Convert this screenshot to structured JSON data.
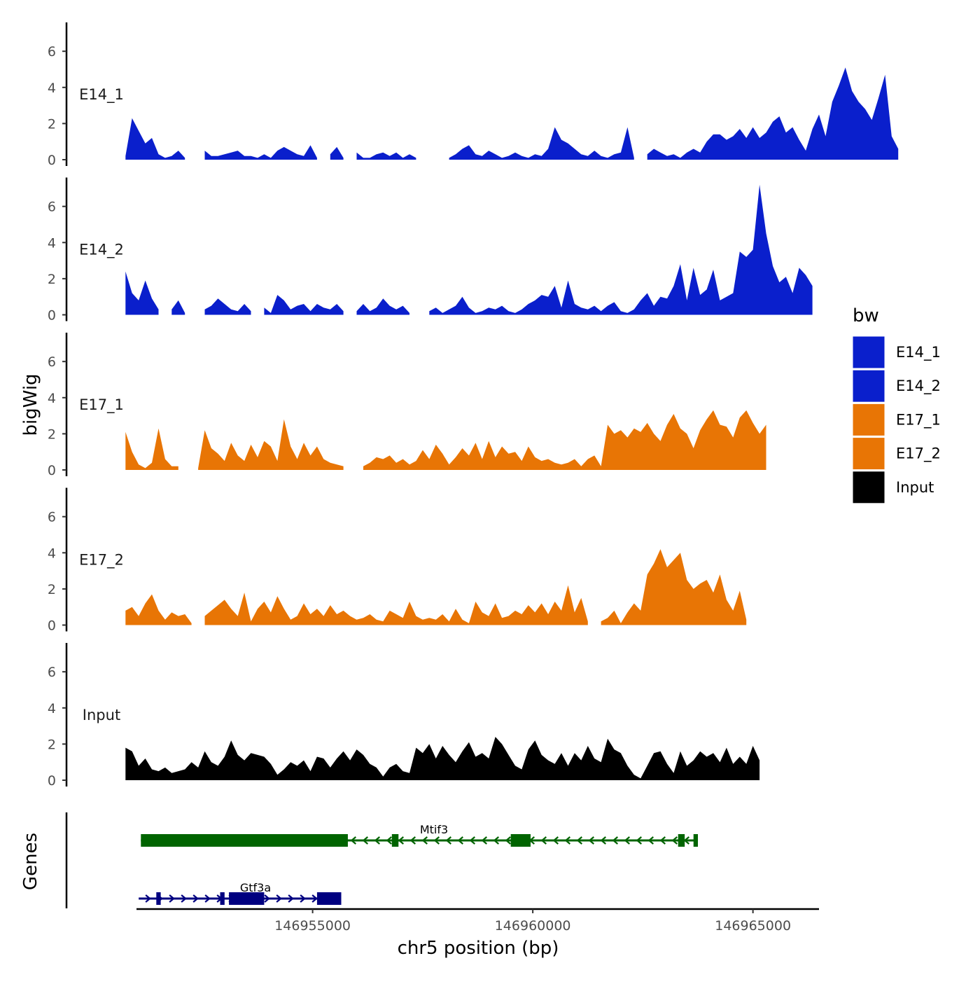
{
  "chart_data": {
    "type": "area",
    "title": "",
    "xlabel": "chr5 position (bp)",
    "ylabel": "bigWig",
    "genes_label": "Genes",
    "xlim": [
      146951000,
      146966500
    ],
    "ylim": [
      0,
      7.6
    ],
    "x_ticks": [
      146955000,
      146960000,
      146965000
    ],
    "x_tick_labels": [
      "146955000",
      "146960000",
      "146965000"
    ],
    "y_ticks": [
      0,
      2,
      4,
      6
    ],
    "y_tick_labels": [
      "0",
      "2",
      "4",
      "6"
    ],
    "legend": {
      "title": "bw",
      "position": "right",
      "entries": [
        {
          "label": "E14_1",
          "color": "#0a1fcc"
        },
        {
          "label": "E14_2",
          "color": "#0a1fcc"
        },
        {
          "label": "E17_1",
          "color": "#e87505"
        },
        {
          "label": "E17_2",
          "color": "#e87505"
        },
        {
          "label": "Input",
          "color": "#000000"
        }
      ]
    },
    "series": [
      {
        "name": "E14_1",
        "color": "#0a1fcc",
        "x_start": 146950750,
        "x_step": 150,
        "values": [
          0.2,
          2.3,
          1.6,
          0.9,
          1.2,
          0.3,
          0.1,
          0.2,
          0.5,
          0.1,
          null,
          null,
          0.5,
          0.2,
          0.2,
          0.3,
          0.4,
          0.5,
          0.2,
          0.2,
          0.1,
          0.3,
          0.1,
          0.5,
          0.7,
          0.5,
          0.3,
          0.2,
          0.8,
          0.1,
          null,
          0.3,
          0.7,
          0.1,
          null,
          0.4,
          0.1,
          0.1,
          0.3,
          0.4,
          0.2,
          0.4,
          0.1,
          0.3,
          0.1,
          null,
          null,
          null,
          null,
          0.1,
          0.3,
          0.6,
          0.8,
          0.3,
          0.2,
          0.5,
          0.3,
          0.1,
          0.2,
          0.4,
          0.2,
          0.1,
          0.3,
          0.2,
          0.6,
          1.8,
          1.1,
          0.9,
          0.6,
          0.3,
          0.2,
          0.5,
          0.2,
          0.1,
          0.3,
          0.4,
          1.8,
          0.1,
          null,
          0.3,
          0.6,
          0.4,
          0.2,
          0.3,
          0.1,
          0.4,
          0.6,
          0.4,
          1.0,
          1.4,
          1.4,
          1.1,
          1.3,
          1.7,
          1.2,
          1.8,
          1.2,
          1.5,
          2.1,
          2.4,
          1.5,
          1.8,
          1.1,
          0.5,
          1.7,
          2.5,
          1.3,
          3.2,
          4.1,
          5.1,
          3.8,
          3.2,
          2.8,
          2.2,
          3.4,
          4.7,
          1.3,
          0.6
        ],
        "gaps": []
      },
      {
        "name": "E14_2",
        "color": "#0a1fcc",
        "x_start": 146950750,
        "x_step": 150,
        "values": [
          2.4,
          1.2,
          0.8,
          1.9,
          0.9,
          0.3,
          null,
          0.3,
          0.8,
          0.1,
          null,
          null,
          0.3,
          0.5,
          0.9,
          0.6,
          0.3,
          0.2,
          0.6,
          0.2,
          null,
          0.4,
          0.1,
          1.1,
          0.8,
          0.3,
          0.5,
          0.6,
          0.2,
          0.6,
          0.4,
          0.3,
          0.6,
          0.2,
          null,
          0.2,
          0.6,
          0.2,
          0.4,
          0.9,
          0.5,
          0.3,
          0.5,
          0.1,
          null,
          null,
          0.2,
          0.4,
          0.1,
          0.3,
          0.5,
          1.0,
          0.4,
          0.1,
          0.2,
          0.4,
          0.3,
          0.5,
          0.2,
          0.1,
          0.3,
          0.6,
          0.8,
          1.1,
          1.0,
          1.6,
          0.4,
          1.9,
          0.6,
          0.4,
          0.3,
          0.5,
          0.2,
          0.5,
          0.7,
          0.2,
          0.1,
          0.3,
          0.8,
          1.2,
          0.5,
          1.0,
          0.9,
          1.6,
          2.8,
          0.8,
          2.6,
          1.1,
          1.4,
          2.5,
          0.8,
          1.0,
          1.2,
          3.5,
          3.2,
          3.6,
          7.2,
          4.5,
          2.7,
          1.8,
          2.1,
          1.2,
          2.6,
          2.2,
          1.6
        ],
        "gaps": []
      },
      {
        "name": "E17_1",
        "color": "#e87505",
        "x_start": 146950750,
        "x_step": 150,
        "values": [
          2.1,
          1.0,
          0.3,
          0.1,
          0.4,
          2.3,
          0.6,
          0.2,
          0.2,
          null,
          null,
          0.1,
          2.2,
          1.2,
          0.9,
          0.5,
          1.5,
          0.8,
          0.5,
          1.4,
          0.7,
          1.6,
          1.3,
          0.5,
          2.8,
          1.3,
          0.6,
          1.5,
          0.8,
          1.3,
          0.6,
          0.4,
          0.3,
          0.2,
          null,
          null,
          0.2,
          0.4,
          0.7,
          0.6,
          0.8,
          0.4,
          0.6,
          0.3,
          0.5,
          1.1,
          0.6,
          1.4,
          0.9,
          0.3,
          0.7,
          1.2,
          0.8,
          1.5,
          0.6,
          1.6,
          0.7,
          1.3,
          0.9,
          1.0,
          0.5,
          1.3,
          0.7,
          0.5,
          0.6,
          0.4,
          0.3,
          0.4,
          0.6,
          0.2,
          0.6,
          0.8,
          0.2,
          2.5,
          2.0,
          2.2,
          1.8,
          2.3,
          2.1,
          2.6,
          2.0,
          1.6,
          2.5,
          3.1,
          2.3,
          2.0,
          1.2,
          2.2,
          2.8,
          3.3,
          2.5,
          2.4,
          1.8,
          2.9,
          3.3,
          2.6,
          2.0,
          2.5
        ],
        "gaps": []
      },
      {
        "name": "E17_2",
        "color": "#e87505",
        "x_start": 146950750,
        "x_step": 150,
        "values": [
          0.8,
          1.0,
          0.5,
          1.2,
          1.7,
          0.8,
          0.3,
          0.7,
          0.5,
          0.6,
          0.1,
          null,
          0.5,
          0.8,
          1.1,
          1.4,
          0.9,
          0.5,
          1.8,
          0.2,
          0.9,
          1.3,
          0.7,
          1.6,
          0.9,
          0.3,
          0.5,
          1.2,
          0.6,
          0.9,
          0.5,
          1.1,
          0.6,
          0.8,
          0.5,
          0.3,
          0.4,
          0.6,
          0.3,
          0.2,
          0.8,
          0.6,
          0.4,
          1.3,
          0.5,
          0.3,
          0.4,
          0.3,
          0.6,
          0.2,
          0.9,
          0.3,
          0.1,
          1.3,
          0.7,
          0.5,
          1.2,
          0.4,
          0.5,
          0.8,
          0.6,
          1.1,
          0.7,
          1.2,
          0.6,
          1.3,
          0.8,
          2.2,
          0.7,
          1.5,
          0.2,
          null,
          0.2,
          0.4,
          0.8,
          0.1,
          0.7,
          1.2,
          0.8,
          2.8,
          3.4,
          4.2,
          3.2,
          3.6,
          4.0,
          2.5,
          2.0,
          2.3,
          2.5,
          1.8,
          2.8,
          1.4,
          0.8,
          1.9,
          0.3
        ],
        "gaps": []
      },
      {
        "name": "Input",
        "color": "#000000",
        "x_start": 146950750,
        "x_step": 150,
        "values": [
          1.8,
          1.6,
          0.8,
          1.2,
          0.6,
          0.5,
          0.7,
          0.4,
          0.5,
          0.6,
          1.0,
          0.7,
          1.6,
          1.0,
          0.8,
          1.3,
          2.2,
          1.4,
          1.1,
          1.5,
          1.4,
          1.3,
          0.9,
          0.3,
          0.6,
          1.0,
          0.8,
          1.1,
          0.5,
          1.3,
          1.2,
          0.7,
          1.2,
          1.6,
          1.1,
          1.7,
          1.4,
          0.9,
          0.7,
          0.2,
          0.7,
          0.9,
          0.5,
          0.4,
          1.8,
          1.5,
          2.0,
          1.2,
          1.9,
          1.4,
          1.0,
          1.6,
          2.1,
          1.3,
          1.5,
          1.2,
          2.4,
          2.0,
          1.4,
          0.8,
          0.6,
          1.7,
          2.2,
          1.4,
          1.1,
          0.9,
          1.5,
          0.8,
          1.5,
          1.1,
          1.9,
          1.2,
          1.0,
          2.3,
          1.7,
          1.5,
          0.8,
          0.3,
          0.1,
          0.8,
          1.5,
          1.6,
          0.9,
          0.4,
          1.6,
          0.8,
          1.1,
          1.6,
          1.3,
          1.5,
          1.0,
          1.8,
          0.9,
          1.3,
          0.9,
          1.9,
          1.1
        ],
        "gaps": []
      }
    ],
    "genes": [
      {
        "name": "Mtif3",
        "color": "#006400",
        "strand": "-",
        "start": 146951100,
        "end": 146963750,
        "thick": [
          [
            146951100,
            146955800
          ],
          [
            146956800,
            146956950
          ],
          [
            146959500,
            146959950
          ],
          [
            146963300,
            146963450
          ],
          [
            146963650,
            146963750
          ]
        ]
      },
      {
        "name": "Gtf3a",
        "color": "#000080",
        "strand": "+",
        "start": 146951050,
        "end": 146955650,
        "thick": [
          [
            146951450,
            146951550
          ],
          [
            146952900,
            146953000
          ],
          [
            146953100,
            146953900
          ],
          [
            146955100,
            146955650
          ]
        ]
      }
    ]
  }
}
